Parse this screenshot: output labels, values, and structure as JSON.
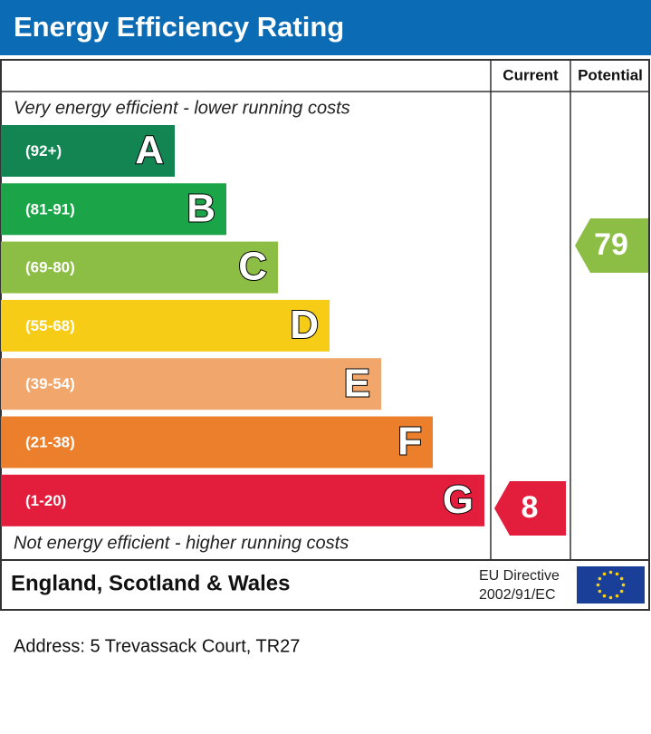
{
  "header": {
    "title": "Energy Efficiency Rating"
  },
  "columns": [
    "Current",
    "Potential"
  ],
  "top_note": "Very energy efficient - lower running costs",
  "bottom_note": "Not energy efficient - higher running costs",
  "bands": [
    {
      "range": "(92+)",
      "letter": "A",
      "color": "#138552"
    },
    {
      "range": "(81-91)",
      "letter": "B",
      "color": "#1ba548"
    },
    {
      "range": "(69-80)",
      "letter": "C",
      "color": "#8cbd44"
    },
    {
      "range": "(55-68)",
      "letter": "D",
      "color": "#f6cc17"
    },
    {
      "range": "(39-54)",
      "letter": "E",
      "color": "#f1a66b"
    },
    {
      "range": "(21-38)",
      "letter": "F",
      "color": "#ec7f2b"
    },
    {
      "range": "(1-20)",
      "letter": "G",
      "color": "#e31d3c"
    }
  ],
  "current": {
    "value": 8,
    "color": "#e31d3c"
  },
  "potential": {
    "value": 79,
    "color": "#8cbd44"
  },
  "footer": {
    "region": "England, Scotland & Wales",
    "directive": [
      "EU Directive",
      "2002/91/EC"
    ]
  },
  "address": "Address: 5 Trevassack Court, TR27"
}
